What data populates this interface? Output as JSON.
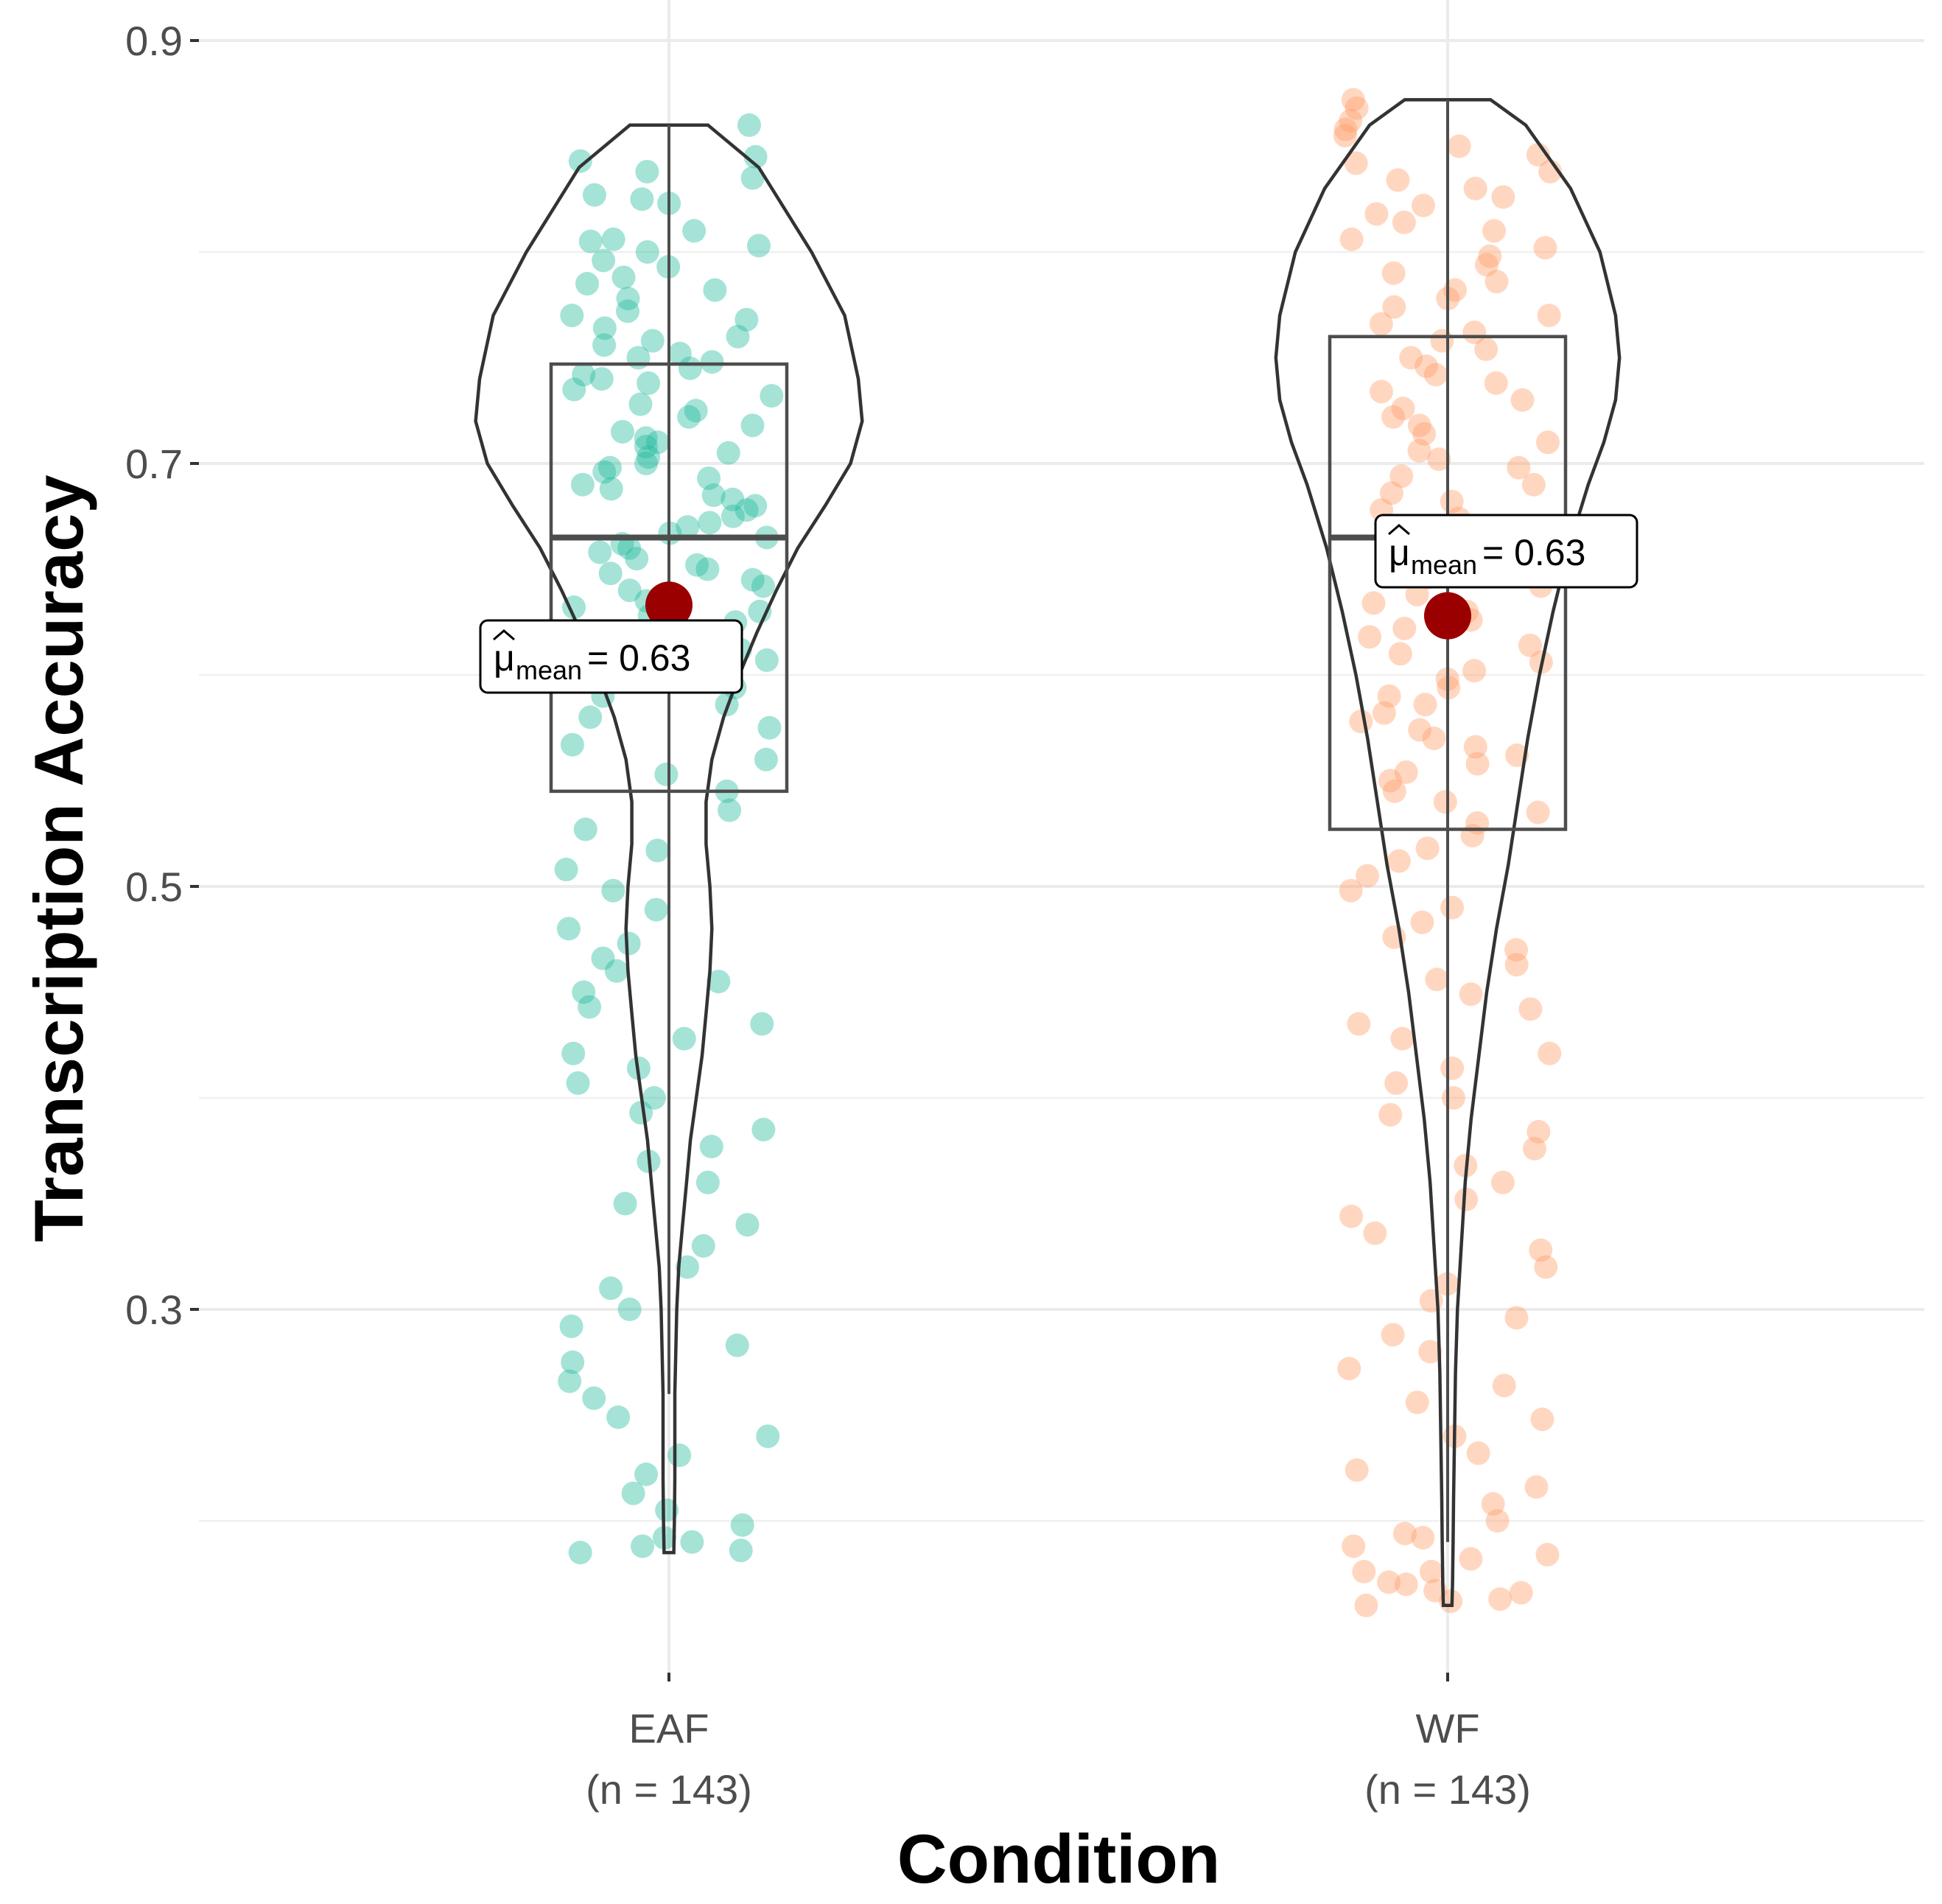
{
  "chart_data": {
    "type": "violin-box-scatter",
    "xlabel": "Condition",
    "ylabel": "Transcription Accuracy",
    "ylim": [
      0.125,
      0.91
    ],
    "yticks": [
      0.3,
      0.5,
      0.7,
      0.9
    ],
    "ytick_labels": [
      "0.3",
      "0.5",
      "0.7",
      "0.9"
    ],
    "grid": true,
    "groups": [
      {
        "name": "EAF",
        "n_label": "(n = 143)",
        "color": "#1fb89a",
        "box": {
          "q1": 0.545,
          "median": 0.665,
          "q3": 0.747
        },
        "whisker": {
          "low": 0.26,
          "high": 0.86
        },
        "range": [
          0.185,
          0.86
        ],
        "mean": 0.633,
        "mean_label": "0.63",
        "violin_width": [
          [
            0.86,
            0.2
          ],
          [
            0.84,
            0.46
          ],
          [
            0.8,
            0.73
          ],
          [
            0.77,
            0.9
          ],
          [
            0.74,
            0.97
          ],
          [
            0.72,
            0.99
          ],
          [
            0.7,
            0.93
          ],
          [
            0.68,
            0.8
          ],
          [
            0.66,
            0.66
          ],
          [
            0.64,
            0.55
          ],
          [
            0.62,
            0.45
          ],
          [
            0.6,
            0.36
          ],
          [
            0.58,
            0.28
          ],
          [
            0.56,
            0.22
          ],
          [
            0.54,
            0.19
          ],
          [
            0.52,
            0.19
          ],
          [
            0.5,
            0.21
          ],
          [
            0.48,
            0.22
          ],
          [
            0.46,
            0.21
          ],
          [
            0.44,
            0.19
          ],
          [
            0.42,
            0.17
          ],
          [
            0.4,
            0.14
          ],
          [
            0.38,
            0.11
          ],
          [
            0.36,
            0.09
          ],
          [
            0.34,
            0.07
          ],
          [
            0.32,
            0.05
          ],
          [
            0.3,
            0.04
          ],
          [
            0.28,
            0.035
          ],
          [
            0.26,
            0.03
          ],
          [
            0.24,
            0.03
          ],
          [
            0.22,
            0.03
          ],
          [
            0.2,
            0.028
          ],
          [
            0.185,
            0.025
          ]
        ],
        "points": [
          0.86,
          0.845,
          0.843,
          0.838,
          0.835,
          0.827,
          0.825,
          0.823,
          0.81,
          0.806,
          0.805,
          0.803,
          0.8,
          0.796,
          0.793,
          0.788,
          0.785,
          0.782,
          0.778,
          0.772,
          0.77,
          0.768,
          0.764,
          0.76,
          0.758,
          0.756,
          0.752,
          0.75,
          0.748,
          0.745,
          0.742,
          0.74,
          0.738,
          0.735,
          0.732,
          0.728,
          0.725,
          0.722,
          0.718,
          0.715,
          0.712,
          0.71,
          0.708,
          0.705,
          0.703,
          0.7,
          0.698,
          0.696,
          0.693,
          0.69,
          0.688,
          0.685,
          0.683,
          0.68,
          0.678,
          0.675,
          0.672,
          0.67,
          0.667,
          0.665,
          0.662,
          0.66,
          0.658,
          0.655,
          0.652,
          0.65,
          0.648,
          0.645,
          0.642,
          0.64,
          0.637,
          0.635,
          0.632,
          0.63,
          0.628,
          0.625,
          0.622,
          0.62,
          0.617,
          0.615,
          0.612,
          0.61,
          0.607,
          0.605,
          0.602,
          0.6,
          0.597,
          0.594,
          0.59,
          0.586,
          0.58,
          0.575,
          0.567,
          0.56,
          0.553,
          0.545,
          0.536,
          0.527,
          0.517,
          0.508,
          0.498,
          0.489,
          0.48,
          0.473,
          0.466,
          0.46,
          0.455,
          0.45,
          0.443,
          0.435,
          0.428,
          0.421,
          0.414,
          0.407,
          0.4,
          0.393,
          0.385,
          0.377,
          0.37,
          0.36,
          0.35,
          0.34,
          0.33,
          0.32,
          0.31,
          0.3,
          0.292,
          0.283,
          0.275,
          0.266,
          0.258,
          0.249,
          0.24,
          0.231,
          0.222,
          0.213,
          0.205,
          0.198,
          0.192,
          0.188,
          0.185,
          0.186,
          0.19
        ]
      },
      {
        "name": "WF",
        "n_label": "(n = 143)",
        "color": "#fe9b63",
        "box": {
          "q1": 0.527,
          "median": 0.665,
          "q3": 0.76
        },
        "whisker": {
          "low": 0.19,
          "high": 0.872
        },
        "range": [
          0.16,
          0.872
        ],
        "mean": 0.628,
        "mean_label": "0.63",
        "violin_width": [
          [
            0.872,
            0.22
          ],
          [
            0.86,
            0.4
          ],
          [
            0.83,
            0.63
          ],
          [
            0.8,
            0.78
          ],
          [
            0.77,
            0.86
          ],
          [
            0.75,
            0.88
          ],
          [
            0.73,
            0.86
          ],
          [
            0.71,
            0.8
          ],
          [
            0.69,
            0.72
          ],
          [
            0.66,
            0.62
          ],
          [
            0.63,
            0.54
          ],
          [
            0.6,
            0.47
          ],
          [
            0.57,
            0.41
          ],
          [
            0.54,
            0.36
          ],
          [
            0.51,
            0.31
          ],
          [
            0.48,
            0.25
          ],
          [
            0.45,
            0.2
          ],
          [
            0.42,
            0.16
          ],
          [
            0.39,
            0.12
          ],
          [
            0.36,
            0.09
          ],
          [
            0.33,
            0.07
          ],
          [
            0.3,
            0.05
          ],
          [
            0.27,
            0.04
          ],
          [
            0.24,
            0.035
          ],
          [
            0.21,
            0.03
          ],
          [
            0.19,
            0.028
          ],
          [
            0.17,
            0.025
          ],
          [
            0.16,
            0.022
          ]
        ],
        "points": [
          0.872,
          0.868,
          0.862,
          0.858,
          0.855,
          0.85,
          0.846,
          0.842,
          0.838,
          0.834,
          0.83,
          0.826,
          0.822,
          0.818,
          0.814,
          0.81,
          0.806,
          0.802,
          0.798,
          0.794,
          0.79,
          0.786,
          0.782,
          0.778,
          0.774,
          0.77,
          0.766,
          0.762,
          0.758,
          0.754,
          0.75,
          0.746,
          0.742,
          0.738,
          0.734,
          0.73,
          0.726,
          0.722,
          0.718,
          0.714,
          0.71,
          0.706,
          0.702,
          0.698,
          0.694,
          0.69,
          0.686,
          0.682,
          0.678,
          0.674,
          0.67,
          0.666,
          0.662,
          0.658,
          0.654,
          0.65,
          0.646,
          0.642,
          0.638,
          0.634,
          0.63,
          0.626,
          0.622,
          0.618,
          0.614,
          0.61,
          0.606,
          0.602,
          0.598,
          0.594,
          0.59,
          0.586,
          0.582,
          0.578,
          0.574,
          0.57,
          0.566,
          0.562,
          0.558,
          0.554,
          0.55,
          0.545,
          0.54,
          0.535,
          0.53,
          0.524,
          0.518,
          0.512,
          0.505,
          0.498,
          0.49,
          0.483,
          0.476,
          0.47,
          0.463,
          0.456,
          0.449,
          0.442,
          0.435,
          0.428,
          0.421,
          0.414,
          0.407,
          0.4,
          0.392,
          0.384,
          0.376,
          0.368,
          0.36,
          0.352,
          0.344,
          0.336,
          0.328,
          0.32,
          0.312,
          0.304,
          0.296,
          0.288,
          0.28,
          0.272,
          0.264,
          0.256,
          0.248,
          0.24,
          0.232,
          0.224,
          0.216,
          0.208,
          0.2,
          0.192,
          0.184,
          0.176,
          0.17,
          0.166,
          0.162,
          0.16,
          0.163,
          0.167,
          0.171,
          0.176,
          0.182,
          0.188,
          0.194
        ]
      }
    ]
  }
}
